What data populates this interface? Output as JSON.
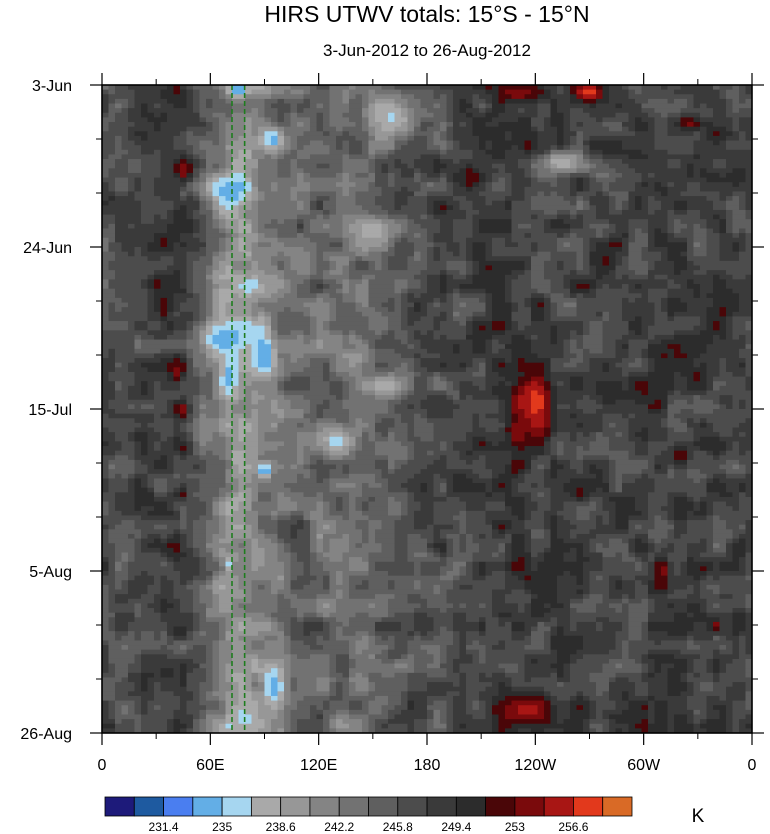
{
  "chart_data": {
    "type": "heatmap",
    "title": "HIRS UTWV totals: 15°S - 15°N",
    "subtitle": "3-Jun-2012 to 26-Aug-2012",
    "x_ticks": [
      "0",
      "60E",
      "120E",
      "180",
      "120W",
      "60W",
      "0"
    ],
    "x_tick_values": [
      0,
      60,
      120,
      180,
      240,
      300,
      360
    ],
    "xlim": [
      0,
      360
    ],
    "y_ticks": [
      "3-Jun",
      "24-Jun",
      "15-Jul",
      "5-Aug",
      "26-Aug"
    ],
    "y_tick_values": [
      0,
      21,
      42,
      63,
      84
    ],
    "ylim": [
      0,
      84
    ],
    "grid": false,
    "reference_lines_lon": [
      72,
      79
    ],
    "reference_line_color": "#1e7d1e",
    "colorbar": {
      "unit": "K",
      "labels": [
        "231.4",
        "235",
        "238.6",
        "242.2",
        "245.8",
        "249.4",
        "253",
        "256.6"
      ],
      "label_values": [
        231.4,
        235,
        238.6,
        242.2,
        245.8,
        249.4,
        253,
        256.6
      ],
      "levels": [
        229.6,
        231.4,
        233.2,
        235,
        236.8,
        238.6,
        240.4,
        242.2,
        244,
        245.8,
        247.6,
        249.4,
        251.2,
        253,
        254.8,
        256.6,
        258.4
      ],
      "colors": [
        "#1d1a7a",
        "#1e5aa0",
        "#4a7ef0",
        "#63aee6",
        "#a6d6f0",
        "#a9a9a9",
        "#979797",
        "#848484",
        "#727272",
        "#5f5f5f",
        "#4c4c4c",
        "#3a3a3a",
        "#2c2c2c",
        "#4a0608",
        "#7a0a0c",
        "#a81614",
        "#e2391c",
        "#d96a26"
      ]
    },
    "features": [
      {
        "lon": 75,
        "day": 0.5,
        "value": 232.8,
        "sx": 6,
        "sy": 1.2
      },
      {
        "lon": 72,
        "day": 14,
        "value": 234.0,
        "sx": 12,
        "sy": 2.5
      },
      {
        "lon": 68,
        "day": 33,
        "value": 233.2,
        "sx": 16,
        "sy": 2.5
      },
      {
        "lon": 70,
        "day": 38,
        "value": 234.2,
        "sx": 6,
        "sy": 3
      },
      {
        "lon": 90,
        "day": 35,
        "value": 232.8,
        "sx": 6,
        "sy": 3
      },
      {
        "lon": 95,
        "day": 7,
        "value": 233.8,
        "sx": 7,
        "sy": 1.5
      },
      {
        "lon": 90,
        "day": 50,
        "value": 233.0,
        "sx": 4,
        "sy": 1
      },
      {
        "lon": 95,
        "day": 78,
        "value": 233.2,
        "sx": 6,
        "sy": 3
      },
      {
        "lon": 130,
        "day": 46,
        "value": 236.0,
        "sx": 8,
        "sy": 2
      },
      {
        "lon": 160,
        "day": 4,
        "value": 236.5,
        "sx": 14,
        "sy": 3
      },
      {
        "lon": 150,
        "day": 19,
        "value": 237.0,
        "sx": 12,
        "sy": 2
      },
      {
        "lon": 155,
        "day": 39,
        "value": 237.2,
        "sx": 15,
        "sy": 1.5
      },
      {
        "lon": 255,
        "day": 10,
        "value": 237.0,
        "sx": 12,
        "sy": 1.5
      },
      {
        "lon": 240,
        "day": 41,
        "value": 257.6,
        "sx": 10,
        "sy": 4.5
      },
      {
        "lon": 232,
        "day": 41,
        "value": 255.2,
        "sx": 6,
        "sy": 2
      },
      {
        "lon": 230,
        "day": 45,
        "value": 254.6,
        "sx": 5,
        "sy": 1.5
      },
      {
        "lon": 270,
        "day": 1,
        "value": 257.0,
        "sx": 10,
        "sy": 1.5
      },
      {
        "lon": 232,
        "day": 1,
        "value": 254.8,
        "sx": 14,
        "sy": 1.2
      },
      {
        "lon": 235,
        "day": 81,
        "value": 255.4,
        "sx": 18,
        "sy": 2.5
      },
      {
        "lon": 45,
        "day": 11,
        "value": 254.8,
        "sx": 5,
        "sy": 2
      },
      {
        "lon": 42,
        "day": 37,
        "value": 253.6,
        "sx": 4,
        "sy": 1.5
      },
      {
        "lon": 44,
        "day": 42,
        "value": 254.2,
        "sx": 4,
        "sy": 1.5
      },
      {
        "lon": 325,
        "day": 5,
        "value": 253.6,
        "sx": 8,
        "sy": 1
      },
      {
        "lon": 310,
        "day": 63,
        "value": 254.2,
        "sx": 5,
        "sy": 2
      },
      {
        "lon": 205,
        "day": 12,
        "value": 253.0,
        "sx": 8,
        "sy": 1.5
      },
      {
        "lon": 320,
        "day": 48,
        "value": 252.6,
        "sx": 5,
        "sy": 1.5
      },
      {
        "lon": 44,
        "day": 53,
        "value": 252.6,
        "sx": 3,
        "sy": 1
      },
      {
        "lon": 265,
        "day": 53,
        "value": 252.8,
        "sx": 4,
        "sy": 1
      },
      {
        "lon": 70,
        "day": 62,
        "value": 235.5,
        "sx": 3,
        "sy": 1
      },
      {
        "lon": 340,
        "day": 70,
        "value": 253.2,
        "sx": 4,
        "sy": 1
      },
      {
        "lon": 280,
        "day": 23,
        "value": 252.0,
        "sx": 6,
        "sy": 1.5
      }
    ]
  }
}
